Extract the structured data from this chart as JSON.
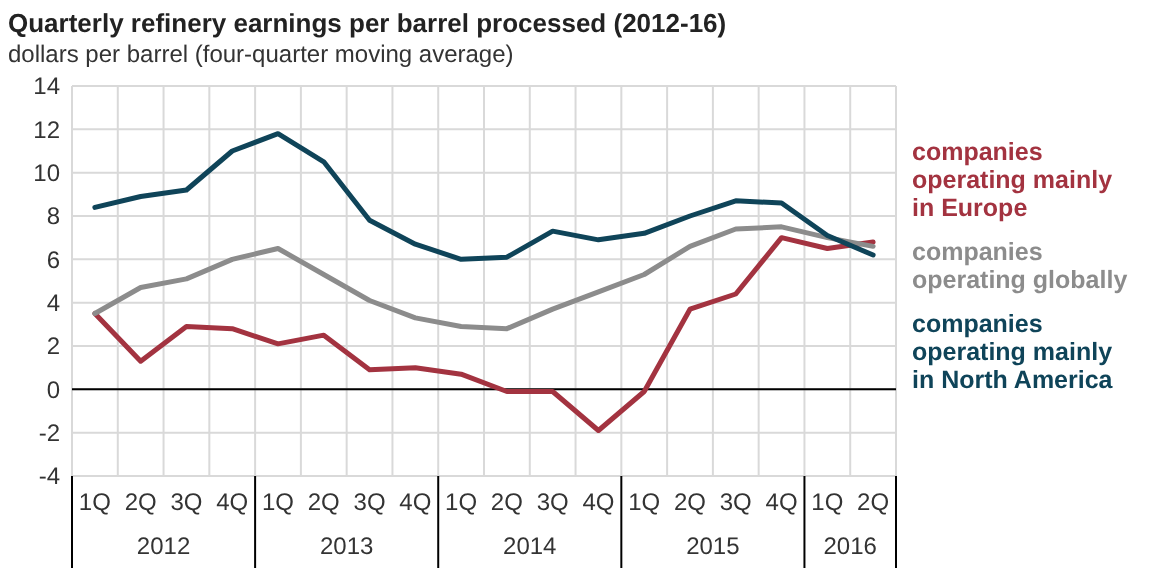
{
  "chart_data": {
    "type": "line",
    "title": "Quarterly refinery earnings per barrel processed (2012-16)",
    "subtitle": "dollars per barrel (four-quarter moving average)",
    "categories": [
      "1Q",
      "2Q",
      "3Q",
      "4Q",
      "1Q",
      "2Q",
      "3Q",
      "4Q",
      "1Q",
      "2Q",
      "3Q",
      "4Q",
      "1Q",
      "2Q",
      "3Q",
      "4Q",
      "1Q",
      "2Q"
    ],
    "annotations": [
      "2012",
      "2013",
      "2014",
      "2015",
      "2016"
    ],
    "series": [
      {
        "name": "companies operating mainly in Europe",
        "color": "#a33340",
        "values": [
          3.5,
          1.3,
          2.9,
          2.8,
          2.1,
          2.5,
          0.9,
          1.0,
          0.7,
          -0.1,
          -0.1,
          -1.9,
          -0.1,
          3.7,
          4.4,
          7.0,
          6.5,
          6.8
        ]
      },
      {
        "name": "companies operating globally",
        "color": "#8c8c8c",
        "values": [
          3.5,
          4.7,
          5.1,
          6.0,
          6.5,
          5.3,
          4.1,
          3.3,
          2.9,
          2.8,
          3.7,
          4.5,
          5.3,
          6.6,
          7.4,
          7.5,
          7.0,
          6.6
        ]
      },
      {
        "name": "companies operating mainly in North America",
        "color": "#0f4459",
        "values": [
          8.4,
          8.9,
          9.2,
          11.0,
          11.8,
          10.5,
          7.8,
          6.7,
          6.0,
          6.1,
          7.3,
          6.9,
          7.2,
          8.0,
          8.7,
          8.6,
          7.1,
          6.2
        ]
      }
    ],
    "ylim": [
      -4,
      14
    ],
    "yticks": [
      -4,
      -2,
      0,
      2,
      4,
      6,
      8,
      10,
      12,
      14
    ],
    "grid": true,
    "legend": "right",
    "marker": "none",
    "line_style": "solid"
  }
}
